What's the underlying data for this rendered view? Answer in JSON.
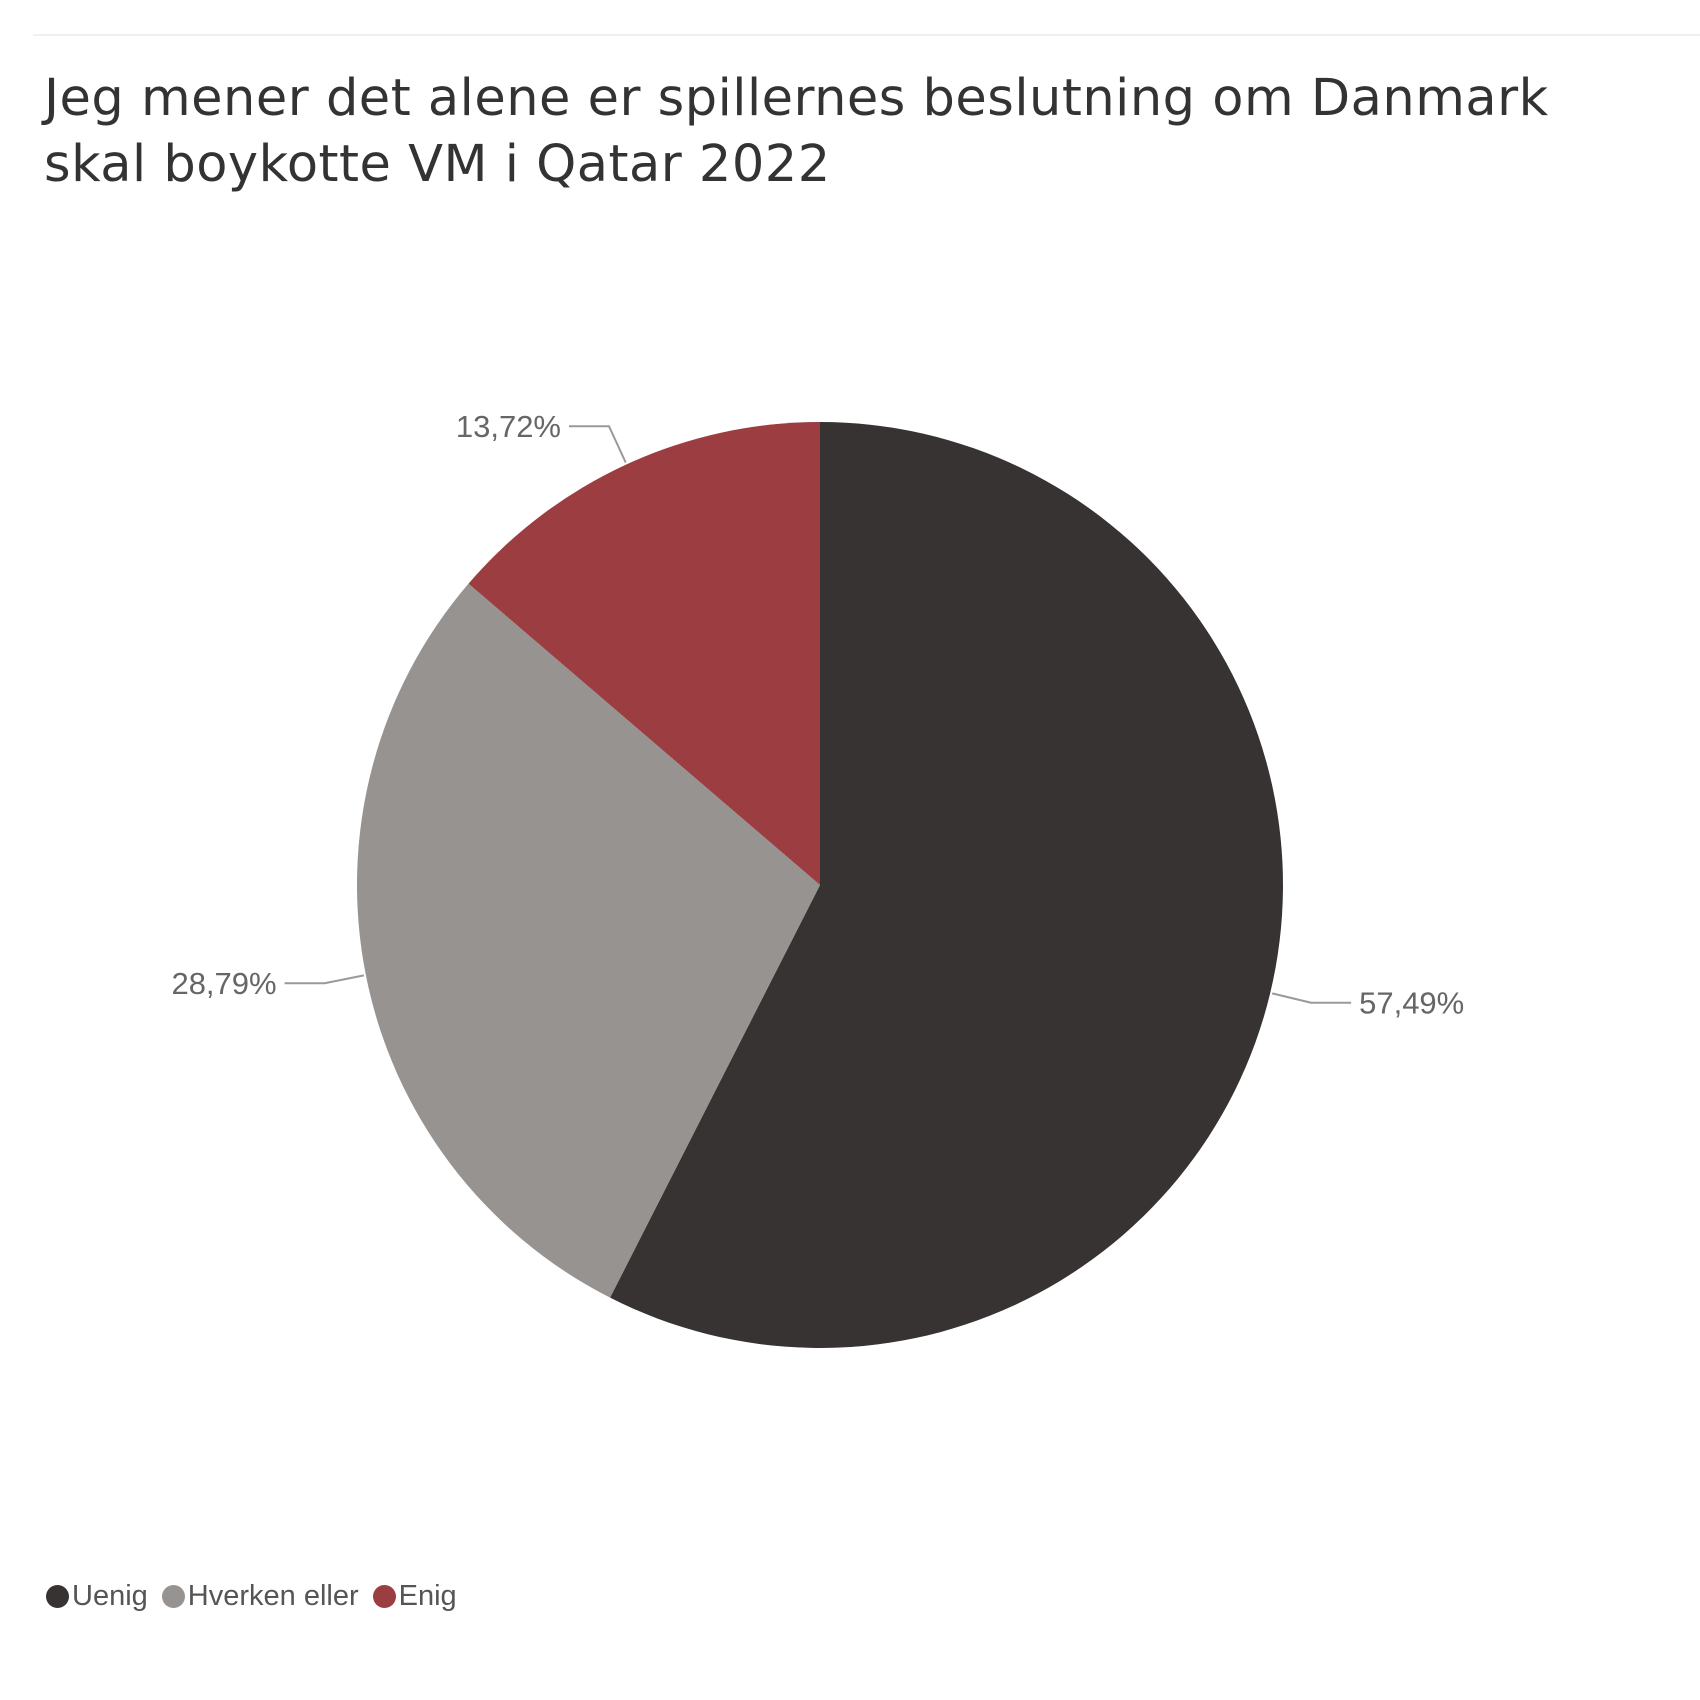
{
  "chart_data": {
    "type": "pie",
    "title": "Jeg mener det alene er spillernes beslutning om Danmark skal boykotte VM i Qatar 2022",
    "title_lines": [
      "Jeg mener det alene er spillernes beslutning om Danmark",
      "skal boykotte VM i Qatar 2022"
    ],
    "slices": [
      {
        "name": "Uenig",
        "value": 57.49,
        "label": "57,49%",
        "color": "#373333"
      },
      {
        "name": "Hverken eller",
        "value": 28.79,
        "label": "28,79%",
        "color": "#969391"
      },
      {
        "name": "Enig",
        "value": 13.72,
        "label": "13,72%",
        "color": "#9c3e41"
      }
    ],
    "start": "12 o'clock",
    "direction": "clockwise",
    "legend_position": "bottom-left",
    "label_color": "#666666",
    "leader_color": "#999999"
  }
}
